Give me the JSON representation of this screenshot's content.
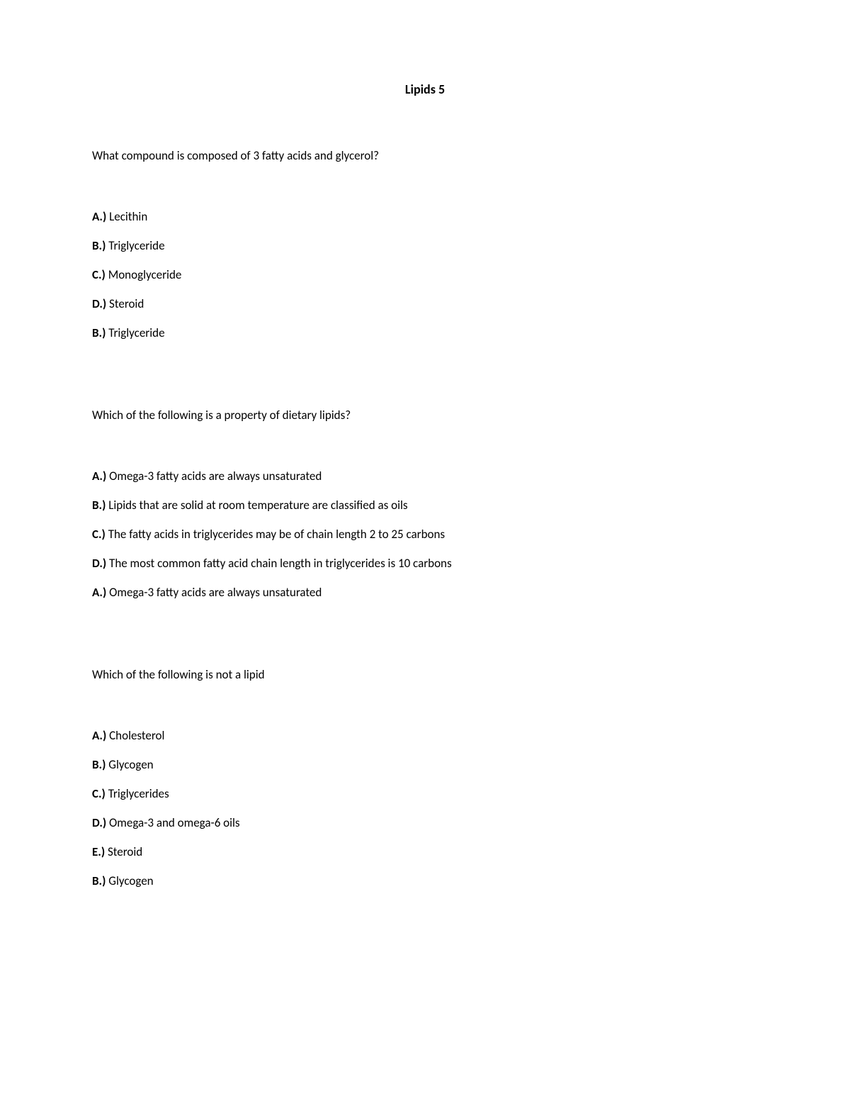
{
  "title": "Lipids 5",
  "questions": [
    {
      "text": "What compound is composed of 3 fatty acids and glycerol?",
      "options": [
        {
          "label": "A.)",
          "text": "Lecithin"
        },
        {
          "label": "B.)",
          "text": "Triglyceride"
        },
        {
          "label": "C.)",
          "text": "Monoglyceride"
        },
        {
          "label": "D.)",
          "text": "Steroid"
        },
        {
          "label": "B.)",
          "text": "Triglyceride"
        }
      ]
    },
    {
      "text": "Which of the following is a property of dietary lipids?",
      "options": [
        {
          "label": "A.)",
          "text": "Omega-3 fatty acids are always unsaturated"
        },
        {
          "label": "B.)",
          "text": "Lipids that are solid at room temperature are classified as oils"
        },
        {
          "label": "C.)",
          "text": "The fatty acids in triglycerides may be of chain length 2 to 25 carbons"
        },
        {
          "label": "D.)",
          "text": "The most common fatty acid chain length in triglycerides is 10 carbons"
        },
        {
          "label": "A.)",
          "text": "Omega-3 fatty acids are always unsaturated"
        }
      ]
    },
    {
      "text": "Which of the following is not a lipid",
      "options": [
        {
          "label": "A.)",
          "text": "Cholesterol"
        },
        {
          "label": "B.)",
          "text": "Glycogen"
        },
        {
          "label": "C.)",
          "text": "Triglycerides"
        },
        {
          "label": "D.)",
          "text": "Omega-3 and omega-6 oils"
        },
        {
          "label": "E.)",
          "text": "Steroid"
        },
        {
          "label": "B.)",
          "text": "Glycogen"
        }
      ]
    }
  ]
}
